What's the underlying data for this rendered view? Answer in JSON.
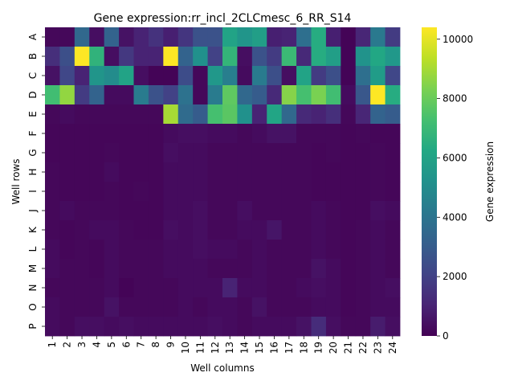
{
  "chart_data": {
    "type": "heatmap",
    "title": "Gene expression:rr_incl_2CLCmesc_6_RR_S14",
    "xlabel": "Well columns",
    "ylabel": "Well rows",
    "colorbar_label": "Gene expression",
    "colormap": "viridis",
    "vmin": 0,
    "vmax": 10400,
    "colorbar_ticks": [
      0,
      2000,
      4000,
      6000,
      8000,
      10000
    ],
    "colorbar_tick_labels": [
      "0",
      "2000",
      "4000",
      "6000",
      "8000",
      "10000"
    ],
    "rows": [
      "A",
      "B",
      "C",
      "D",
      "E",
      "F",
      "G",
      "H",
      "I",
      "J",
      "K",
      "L",
      "M",
      "N",
      "O",
      "P"
    ],
    "columns": [
      "1",
      "2",
      "3",
      "4",
      "5",
      "6",
      "7",
      "8",
      "9",
      "10",
      "11",
      "12",
      "13",
      "14",
      "15",
      "16",
      "17",
      "18",
      "19",
      "20",
      "21",
      "22",
      "23",
      "24"
    ],
    "values": [
      [
        200,
        200,
        3500,
        400,
        3300,
        500,
        1000,
        1500,
        900,
        1600,
        2600,
        2600,
        6000,
        5400,
        5800,
        900,
        1000,
        3800,
        6400,
        900,
        100,
        1100,
        4200,
        1800
      ],
      [
        1400,
        2500,
        10400,
        6700,
        400,
        1700,
        1000,
        1000,
        10400,
        3300,
        5200,
        2000,
        6800,
        400,
        2600,
        1800,
        7000,
        1200,
        6400,
        5800,
        100,
        5300,
        6200,
        5500
      ],
      [
        500,
        2200,
        1000,
        5400,
        5000,
        6000,
        400,
        100,
        100,
        2400,
        200,
        5500,
        4400,
        300,
        4300,
        2500,
        400,
        6000,
        1800,
        2500,
        100,
        3800,
        5700,
        2200
      ],
      [
        7200,
        8700,
        1800,
        3300,
        300,
        300,
        4300,
        2600,
        2000,
        3900,
        200,
        4300,
        7800,
        3500,
        3000,
        1200,
        8500,
        7300,
        8300,
        7200,
        300,
        2800,
        10400,
        6400
      ],
      [
        200,
        300,
        200,
        200,
        200,
        200,
        200,
        200,
        9000,
        3600,
        3000,
        7300,
        7700,
        5200,
        1000,
        6100,
        3500,
        1200,
        1000,
        1400,
        200,
        1100,
        3300,
        3000
      ],
      [
        150,
        150,
        150,
        150,
        150,
        150,
        150,
        150,
        300,
        400,
        400,
        300,
        300,
        200,
        300,
        500,
        500,
        200,
        200,
        200,
        150,
        200,
        150,
        150
      ],
      [
        150,
        150,
        150,
        150,
        200,
        150,
        150,
        150,
        400,
        300,
        300,
        200,
        200,
        200,
        200,
        200,
        200,
        200,
        150,
        200,
        150,
        150,
        200,
        150
      ],
      [
        200,
        150,
        150,
        150,
        300,
        150,
        150,
        150,
        300,
        300,
        300,
        200,
        200,
        200,
        200,
        200,
        200,
        200,
        150,
        150,
        150,
        150,
        200,
        150
      ],
      [
        200,
        150,
        150,
        150,
        200,
        150,
        200,
        150,
        300,
        300,
        300,
        200,
        200,
        200,
        200,
        200,
        200,
        200,
        150,
        150,
        150,
        150,
        200,
        150
      ],
      [
        200,
        300,
        200,
        200,
        200,
        150,
        150,
        150,
        300,
        300,
        400,
        200,
        200,
        400,
        200,
        200,
        200,
        200,
        300,
        200,
        150,
        150,
        400,
        300
      ],
      [
        200,
        150,
        200,
        300,
        300,
        200,
        150,
        150,
        400,
        300,
        400,
        200,
        200,
        300,
        300,
        600,
        200,
        200,
        300,
        200,
        150,
        200,
        300,
        200
      ],
      [
        300,
        150,
        200,
        150,
        300,
        200,
        200,
        200,
        300,
        300,
        400,
        300,
        300,
        200,
        300,
        200,
        200,
        200,
        300,
        200,
        150,
        200,
        300,
        200
      ],
      [
        300,
        200,
        200,
        150,
        300,
        200,
        200,
        200,
        300,
        300,
        300,
        200,
        200,
        200,
        300,
        200,
        200,
        200,
        500,
        300,
        150,
        200,
        300,
        200
      ],
      [
        200,
        200,
        200,
        200,
        300,
        100,
        200,
        200,
        200,
        300,
        300,
        300,
        1000,
        300,
        300,
        200,
        200,
        300,
        400,
        300,
        150,
        200,
        300,
        400
      ],
      [
        300,
        200,
        200,
        200,
        500,
        200,
        200,
        200,
        200,
        300,
        200,
        300,
        300,
        200,
        500,
        200,
        200,
        200,
        300,
        300,
        150,
        200,
        300,
        300
      ],
      [
        300,
        200,
        400,
        400,
        300,
        400,
        300,
        300,
        300,
        300,
        300,
        400,
        300,
        200,
        300,
        300,
        300,
        500,
        1300,
        400,
        200,
        200,
        800,
        400
      ]
    ]
  }
}
